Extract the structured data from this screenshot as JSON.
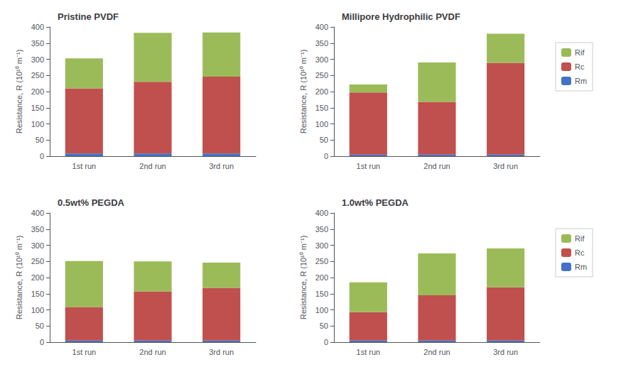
{
  "chart_data": [
    {
      "type": "bar",
      "stacked": true,
      "title": "Pristine PVDF",
      "categories": [
        "1st run",
        "2nd run",
        "3rd run"
      ],
      "series": [
        {
          "name": "Rm",
          "color": "#4472C4",
          "values": [
            8,
            8,
            8
          ]
        },
        {
          "name": "Rc",
          "color": "#C0504D",
          "values": [
            202,
            222,
            238
          ]
        },
        {
          "name": "Rif",
          "color": "#9BBB59",
          "values": [
            93,
            152,
            137
          ]
        }
      ],
      "ylabel": "Resistance, R (10¹⁰ m⁻¹)",
      "ylim": [
        0,
        400
      ],
      "yticks": [
        0,
        50,
        100,
        150,
        200,
        250,
        300,
        350,
        400
      ],
      "grid": false
    },
    {
      "type": "bar",
      "stacked": true,
      "title": "Millipore Hydrophilic PVDF",
      "categories": [
        "1st run",
        "2nd run",
        "3rd run"
      ],
      "series": [
        {
          "name": "Rm",
          "color": "#4472C4",
          "values": [
            5,
            5,
            5
          ]
        },
        {
          "name": "Rc",
          "color": "#C0504D",
          "values": [
            192,
            163,
            284
          ]
        },
        {
          "name": "Rif",
          "color": "#9BBB59",
          "values": [
            25,
            122,
            90
          ]
        }
      ],
      "ylabel": "Resistance, R (10¹⁰ m⁻¹)",
      "ylim": [
        0,
        400
      ],
      "yticks": [
        0,
        50,
        100,
        150,
        200,
        250,
        300,
        350,
        400
      ],
      "grid": false,
      "legend": "right"
    },
    {
      "type": "bar",
      "stacked": true,
      "title": "0.5wt% PEGDA",
      "categories": [
        "1st run",
        "2nd run",
        "3rd run"
      ],
      "series": [
        {
          "name": "Rm",
          "color": "#4472C4",
          "values": [
            5,
            5,
            5
          ]
        },
        {
          "name": "Rc",
          "color": "#C0504D",
          "values": [
            104,
            152,
            163
          ]
        },
        {
          "name": "Rif",
          "color": "#9BBB59",
          "values": [
            142,
            93,
            78
          ]
        }
      ],
      "ylabel": "Resistance, R (10¹⁰ m⁻¹)",
      "ylim": [
        0,
        400
      ],
      "yticks": [
        0,
        50,
        100,
        150,
        200,
        250,
        300,
        350,
        400
      ],
      "grid": false
    },
    {
      "type": "bar",
      "stacked": true,
      "title": "1.0wt% PEGDA",
      "categories": [
        "1st run",
        "2nd run",
        "3rd run"
      ],
      "series": [
        {
          "name": "Rm",
          "color": "#4472C4",
          "values": [
            5,
            5,
            5
          ]
        },
        {
          "name": "Rc",
          "color": "#C0504D",
          "values": [
            88,
            140,
            165
          ]
        },
        {
          "name": "Rif",
          "color": "#9BBB59",
          "values": [
            92,
            130,
            120
          ]
        }
      ],
      "ylabel": "Resistance, R (10¹⁰ m⁻¹)",
      "ylim": [
        0,
        400
      ],
      "yticks": [
        0,
        50,
        100,
        150,
        200,
        250,
        300,
        350,
        400
      ],
      "grid": false,
      "legend": "right"
    }
  ]
}
